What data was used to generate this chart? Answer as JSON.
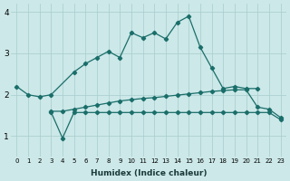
{
  "x_upper": [
    0,
    1,
    2,
    3,
    5,
    6,
    7,
    8,
    9,
    10,
    11,
    12,
    13,
    14,
    15,
    16,
    17,
    18,
    19,
    20,
    21
  ],
  "y_upper": [
    2.2,
    2.0,
    1.95,
    2.0,
    2.55,
    2.75,
    2.9,
    3.05,
    2.9,
    3.5,
    3.38,
    3.5,
    3.35,
    3.75,
    3.9,
    3.15,
    2.65,
    2.15,
    2.2,
    2.15,
    2.15
  ],
  "x_mid": [
    3,
    4,
    5,
    6,
    7,
    8,
    9,
    10,
    11,
    12,
    13,
    14,
    15,
    16,
    17,
    18,
    19,
    20,
    21,
    22,
    23
  ],
  "y_mid": [
    1.6,
    1.6,
    1.65,
    1.7,
    1.75,
    1.8,
    1.85,
    1.88,
    1.91,
    1.93,
    1.96,
    1.99,
    2.02,
    2.05,
    2.08,
    2.1,
    2.12,
    2.12,
    1.7,
    1.65,
    1.45
  ],
  "x_lower": [
    3,
    4,
    5,
    6,
    7,
    8,
    9,
    10,
    11,
    12,
    13,
    14,
    15,
    16,
    17,
    18,
    19,
    20,
    21,
    22,
    23
  ],
  "y_lower": [
    1.58,
    0.95,
    1.57,
    1.57,
    1.57,
    1.57,
    1.57,
    1.57,
    1.57,
    1.57,
    1.57,
    1.57,
    1.57,
    1.57,
    1.57,
    1.57,
    1.57,
    1.57,
    1.57,
    1.57,
    1.4
  ],
  "bg_color": "#cce8e8",
  "grid_color": "#a8cccc",
  "line_color": "#1a6e6a",
  "xlabel": "Humidex (Indice chaleur)",
  "ylim": [
    0.5,
    4.2
  ],
  "xlim": [
    -0.5,
    23.5
  ],
  "yticks": [
    1,
    2,
    3,
    4
  ],
  "xticks": [
    0,
    1,
    2,
    3,
    4,
    5,
    6,
    7,
    8,
    9,
    10,
    11,
    12,
    13,
    14,
    15,
    16,
    17,
    18,
    19,
    20,
    21,
    22,
    23
  ]
}
